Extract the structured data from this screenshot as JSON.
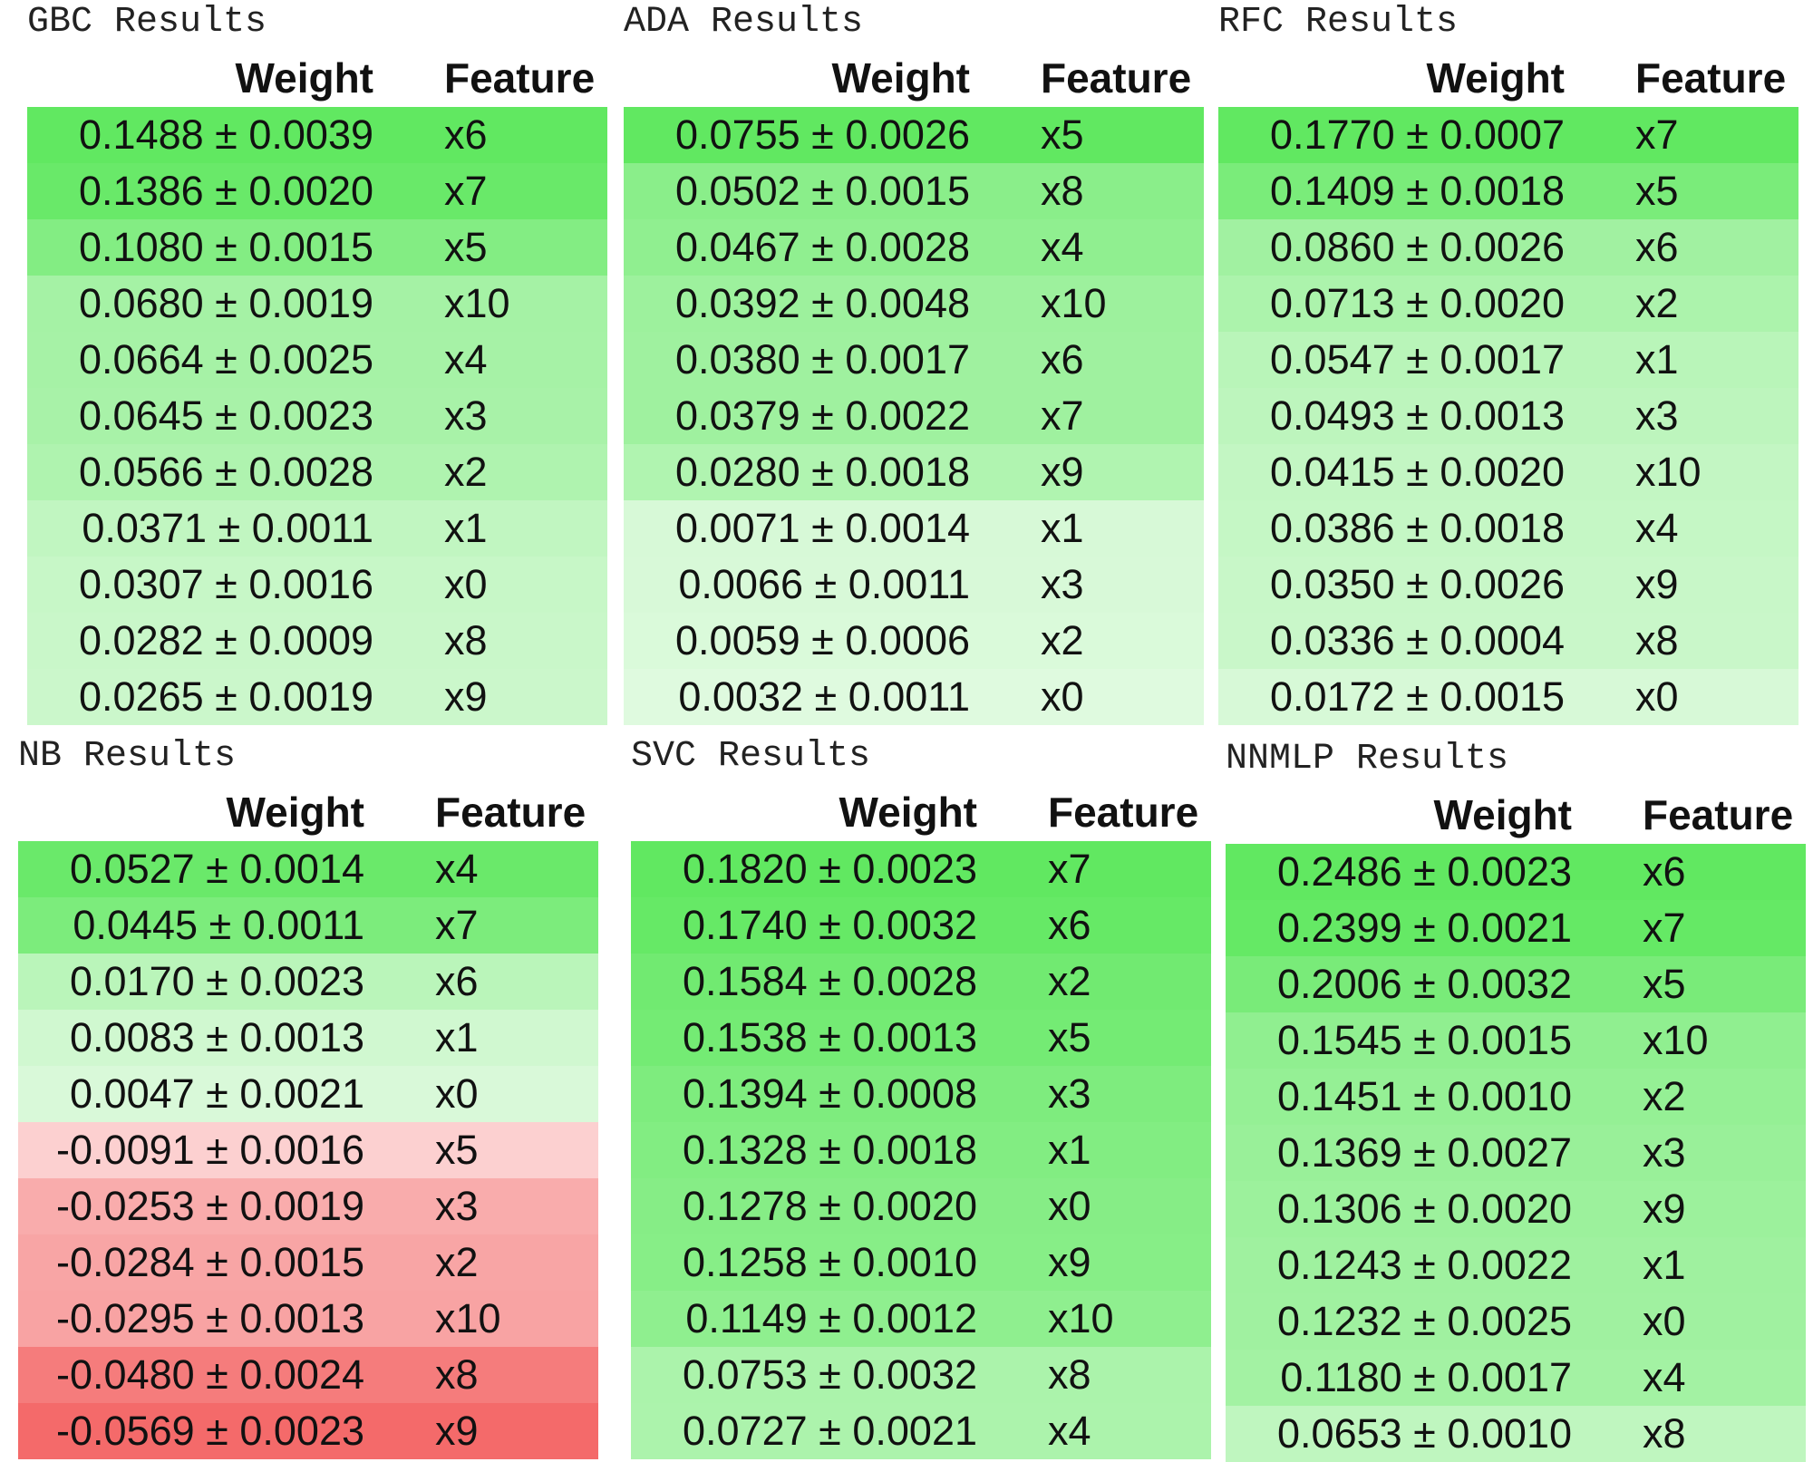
{
  "colors": {
    "positive": "#61e861",
    "negative": "#f46a6a",
    "background": "#ffffff"
  },
  "panels": [
    {
      "title": "GBC Results",
      "weight_header": "Weight",
      "feature_header": "Feature",
      "rows": [
        {
          "weight": "0.1488 ± 0.0039",
          "feature": "x6",
          "value": 0.1488
        },
        {
          "weight": "0.1386 ± 0.0020",
          "feature": "x7",
          "value": 0.1386
        },
        {
          "weight": "0.1080 ± 0.0015",
          "feature": "x5",
          "value": 0.108
        },
        {
          "weight": "0.0680 ± 0.0019",
          "feature": "x10",
          "value": 0.068
        },
        {
          "weight": "0.0664 ± 0.0025",
          "feature": "x4",
          "value": 0.0664
        },
        {
          "weight": "0.0645 ± 0.0023",
          "feature": "x3",
          "value": 0.0645
        },
        {
          "weight": "0.0566 ± 0.0028",
          "feature": "x2",
          "value": 0.0566
        },
        {
          "weight": "0.0371 ± 0.0011",
          "feature": "x1",
          "value": 0.0371
        },
        {
          "weight": "0.0307 ± 0.0016",
          "feature": "x0",
          "value": 0.0307
        },
        {
          "weight": "0.0282 ± 0.0009",
          "feature": "x8",
          "value": 0.0282
        },
        {
          "weight": "0.0265 ± 0.0019",
          "feature": "x9",
          "value": 0.0265
        }
      ]
    },
    {
      "title": "ADA Results",
      "weight_header": "Weight",
      "feature_header": "Feature",
      "rows": [
        {
          "weight": "0.0755 ± 0.0026",
          "feature": "x5",
          "value": 0.0755
        },
        {
          "weight": "0.0502 ± 0.0015",
          "feature": "x8",
          "value": 0.0502
        },
        {
          "weight": "0.0467 ± 0.0028",
          "feature": "x4",
          "value": 0.0467
        },
        {
          "weight": "0.0392 ± 0.0048",
          "feature": "x10",
          "value": 0.0392
        },
        {
          "weight": "0.0380 ± 0.0017",
          "feature": "x6",
          "value": 0.038
        },
        {
          "weight": "0.0379 ± 0.0022",
          "feature": "x7",
          "value": 0.0379
        },
        {
          "weight": "0.0280 ± 0.0018",
          "feature": "x9",
          "value": 0.028
        },
        {
          "weight": "0.0071 ± 0.0014",
          "feature": "x1",
          "value": 0.0071
        },
        {
          "weight": "0.0066 ± 0.0011",
          "feature": "x3",
          "value": 0.0066
        },
        {
          "weight": "0.0059 ± 0.0006",
          "feature": "x2",
          "value": 0.0059
        },
        {
          "weight": "0.0032 ± 0.0011",
          "feature": "x0",
          "value": 0.0032
        }
      ]
    },
    {
      "title": "RFC Results",
      "weight_header": "Weight",
      "feature_header": "Feature",
      "rows": [
        {
          "weight": "0.1770 ± 0.0007",
          "feature": "x7",
          "value": 0.177
        },
        {
          "weight": "0.1409 ± 0.0018",
          "feature": "x5",
          "value": 0.1409
        },
        {
          "weight": "0.0860 ± 0.0026",
          "feature": "x6",
          "value": 0.086
        },
        {
          "weight": "0.0713 ± 0.0020",
          "feature": "x2",
          "value": 0.0713
        },
        {
          "weight": "0.0547 ± 0.0017",
          "feature": "x1",
          "value": 0.0547
        },
        {
          "weight": "0.0493 ± 0.0013",
          "feature": "x3",
          "value": 0.0493
        },
        {
          "weight": "0.0415 ± 0.0020",
          "feature": "x10",
          "value": 0.0415
        },
        {
          "weight": "0.0386 ± 0.0018",
          "feature": "x4",
          "value": 0.0386
        },
        {
          "weight": "0.0350 ± 0.0026",
          "feature": "x9",
          "value": 0.035
        },
        {
          "weight": "0.0336 ± 0.0004",
          "feature": "x8",
          "value": 0.0336
        },
        {
          "weight": "0.0172 ± 0.0015",
          "feature": "x0",
          "value": 0.0172
        }
      ]
    },
    {
      "title": "NB Results",
      "weight_header": "Weight",
      "feature_header": "Feature",
      "rows": [
        {
          "weight": "0.0527 ± 0.0014",
          "feature": "x4",
          "value": 0.0527
        },
        {
          "weight": "0.0445 ± 0.0011",
          "feature": "x7",
          "value": 0.0445
        },
        {
          "weight": "0.0170 ± 0.0023",
          "feature": "x6",
          "value": 0.017
        },
        {
          "weight": "0.0083 ± 0.0013",
          "feature": "x1",
          "value": 0.0083
        },
        {
          "weight": "0.0047 ± 0.0021",
          "feature": "x0",
          "value": 0.0047
        },
        {
          "weight": "-0.0091 ± 0.0016",
          "feature": "x5",
          "value": -0.0091
        },
        {
          "weight": "-0.0253 ± 0.0019",
          "feature": "x3",
          "value": -0.0253
        },
        {
          "weight": "-0.0284 ± 0.0015",
          "feature": "x2",
          "value": -0.0284
        },
        {
          "weight": "-0.0295 ± 0.0013",
          "feature": "x10",
          "value": -0.0295
        },
        {
          "weight": "-0.0480 ± 0.0024",
          "feature": "x8",
          "value": -0.048
        },
        {
          "weight": "-0.0569 ± 0.0023",
          "feature": "x9",
          "value": -0.0569
        }
      ]
    },
    {
      "title": "SVC Results",
      "weight_header": "Weight",
      "feature_header": "Feature",
      "rows": [
        {
          "weight": "0.1820 ± 0.0023",
          "feature": "x7",
          "value": 0.182
        },
        {
          "weight": "0.1740 ± 0.0032",
          "feature": "x6",
          "value": 0.174
        },
        {
          "weight": "0.1584 ± 0.0028",
          "feature": "x2",
          "value": 0.1584
        },
        {
          "weight": "0.1538 ± 0.0013",
          "feature": "x5",
          "value": 0.1538
        },
        {
          "weight": "0.1394 ± 0.0008",
          "feature": "x3",
          "value": 0.1394
        },
        {
          "weight": "0.1328 ± 0.0018",
          "feature": "x1",
          "value": 0.1328
        },
        {
          "weight": "0.1278 ± 0.0020",
          "feature": "x0",
          "value": 0.1278
        },
        {
          "weight": "0.1258 ± 0.0010",
          "feature": "x9",
          "value": 0.1258
        },
        {
          "weight": "0.1149 ± 0.0012",
          "feature": "x10",
          "value": 0.1149
        },
        {
          "weight": "0.0753 ± 0.0032",
          "feature": "x8",
          "value": 0.0753
        },
        {
          "weight": "0.0727 ± 0.0021",
          "feature": "x4",
          "value": 0.0727
        }
      ]
    },
    {
      "title": "NNMLP Results",
      "weight_header": "Weight",
      "feature_header": "Feature",
      "rows": [
        {
          "weight": "0.2486 ± 0.0023",
          "feature": "x6",
          "value": 0.2486
        },
        {
          "weight": "0.2399 ± 0.0021",
          "feature": "x7",
          "value": 0.2399
        },
        {
          "weight": "0.2006 ± 0.0032",
          "feature": "x5",
          "value": 0.2006
        },
        {
          "weight": "0.1545 ± 0.0015",
          "feature": "x10",
          "value": 0.1545
        },
        {
          "weight": "0.1451 ± 0.0010",
          "feature": "x2",
          "value": 0.1451
        },
        {
          "weight": "0.1369 ± 0.0027",
          "feature": "x3",
          "value": 0.1369
        },
        {
          "weight": "0.1306 ± 0.0020",
          "feature": "x9",
          "value": 0.1306
        },
        {
          "weight": "0.1243 ± 0.0022",
          "feature": "x1",
          "value": 0.1243
        },
        {
          "weight": "0.1232 ± 0.0025",
          "feature": "x0",
          "value": 0.1232
        },
        {
          "weight": "0.1180 ± 0.0017",
          "feature": "x4",
          "value": 0.118
        },
        {
          "weight": "0.0653 ± 0.0010",
          "feature": "x8",
          "value": 0.0653
        }
      ]
    }
  ]
}
